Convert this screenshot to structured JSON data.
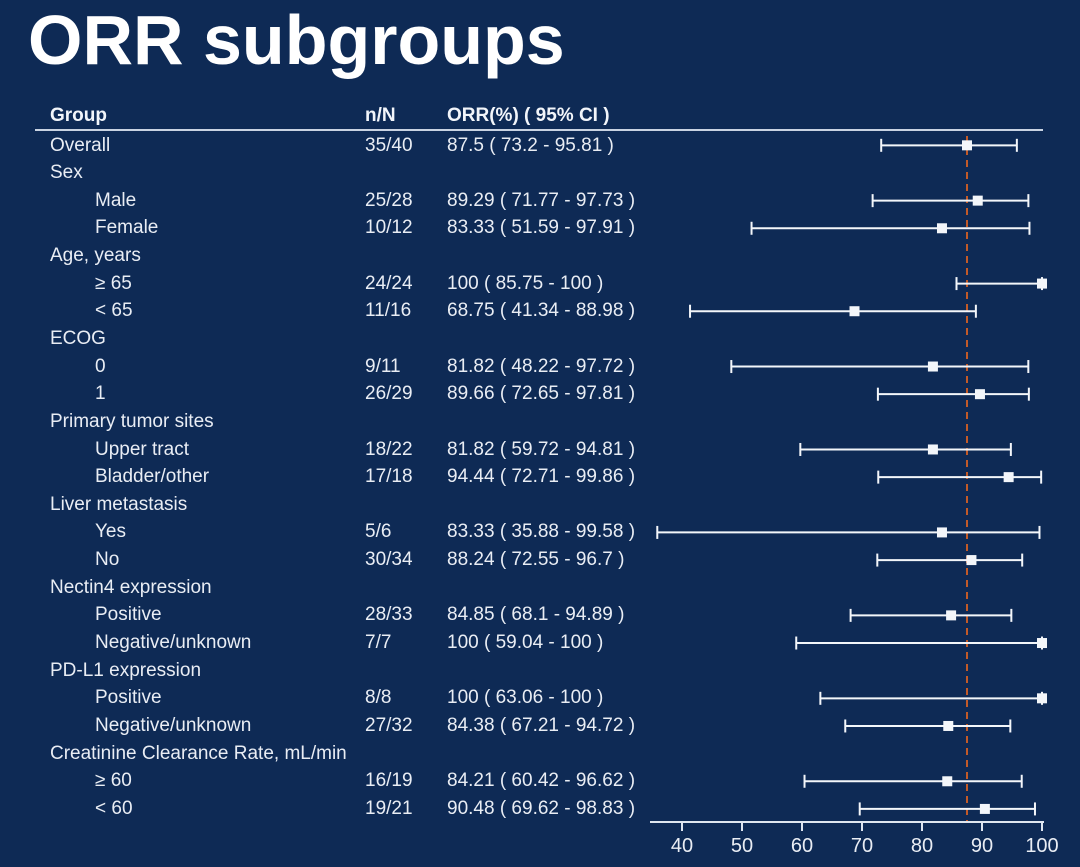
{
  "title": "ORR subgroups",
  "colors": {
    "background": "#0e2a55",
    "text": "#e9edf4",
    "bar": "#f3f6fa",
    "axis": "#dfe6f0",
    "header_rule": "#c9d3e2",
    "reference_line": "#c25a28"
  },
  "chart_data": {
    "type": "forest",
    "title": "ORR subgroups",
    "xlabel": "",
    "x_ticks": [
      40,
      50,
      60,
      70,
      80,
      90,
      100
    ],
    "x_range": [
      40,
      100
    ],
    "reference_line_value": 87.5,
    "legend": "none",
    "columns": {
      "group": "Group",
      "n_over_N": "n/N",
      "orr_ci": "ORR(%) ( 95% CI )"
    },
    "rows": [
      {
        "label": "Overall",
        "indent": 0,
        "nN": "35/40",
        "orr_text": "87.5 ( 73.2 - 95.81 )",
        "orr": 87.5,
        "ci_low": 73.2,
        "ci_high": 95.81
      },
      {
        "label": "Sex",
        "indent": 0
      },
      {
        "label": "Male",
        "indent": 1,
        "nN": "25/28",
        "orr_text": "89.29 ( 71.77 - 97.73 )",
        "orr": 89.29,
        "ci_low": 71.77,
        "ci_high": 97.73
      },
      {
        "label": "Female",
        "indent": 1,
        "nN": "10/12",
        "orr_text": "83.33 ( 51.59 - 97.91 )",
        "orr": 83.33,
        "ci_low": 51.59,
        "ci_high": 97.91
      },
      {
        "label": "Age, years",
        "indent": 0
      },
      {
        "label": "≥ 65",
        "indent": 1,
        "nN": "24/24",
        "orr_text": "100 ( 85.75 - 100 )",
        "orr": 100,
        "ci_low": 85.75,
        "ci_high": 100
      },
      {
        "label": "< 65",
        "indent": 1,
        "nN": "11/16",
        "orr_text": "68.75 ( 41.34 - 88.98 )",
        "orr": 68.75,
        "ci_low": 41.34,
        "ci_high": 88.98
      },
      {
        "label": "ECOG",
        "indent": 0
      },
      {
        "label": "0",
        "indent": 1,
        "nN": "9/11",
        "orr_text": "81.82 ( 48.22 - 97.72 )",
        "orr": 81.82,
        "ci_low": 48.22,
        "ci_high": 97.72
      },
      {
        "label": "1",
        "indent": 1,
        "nN": "26/29",
        "orr_text": "89.66 ( 72.65 - 97.81 )",
        "orr": 89.66,
        "ci_low": 72.65,
        "ci_high": 97.81
      },
      {
        "label": "Primary tumor sites",
        "indent": 0
      },
      {
        "label": "Upper tract",
        "indent": 1,
        "nN": "18/22",
        "orr_text": "81.82 ( 59.72 - 94.81 )",
        "orr": 81.82,
        "ci_low": 59.72,
        "ci_high": 94.81
      },
      {
        "label": "Bladder/other",
        "indent": 1,
        "nN": "17/18",
        "orr_text": "94.44 ( 72.71 - 99.86 )",
        "orr": 94.44,
        "ci_low": 72.71,
        "ci_high": 99.86
      },
      {
        "label": "Liver metastasis",
        "indent": 0
      },
      {
        "label": "Yes",
        "indent": 1,
        "nN": "5/6",
        "orr_text": "83.33 ( 35.88 - 99.58 )",
        "orr": 83.33,
        "ci_low": 35.88,
        "ci_high": 99.58
      },
      {
        "label": "No",
        "indent": 1,
        "nN": "30/34",
        "orr_text": "88.24 ( 72.55 - 96.7 )",
        "orr": 88.24,
        "ci_low": 72.55,
        "ci_high": 96.7
      },
      {
        "label": "Nectin4 expression",
        "indent": 0
      },
      {
        "label": "Positive",
        "indent": 1,
        "nN": "28/33",
        "orr_text": "84.85 ( 68.1 - 94.89 )",
        "orr": 84.85,
        "ci_low": 68.1,
        "ci_high": 94.89
      },
      {
        "label": "Negative/unknown",
        "indent": 1,
        "nN": "7/7",
        "orr_text": "100 ( 59.04 - 100 )",
        "orr": 100,
        "ci_low": 59.04,
        "ci_high": 100
      },
      {
        "label": "PD-L1 expression",
        "indent": 0
      },
      {
        "label": "Positive",
        "indent": 1,
        "nN": "8/8",
        "orr_text": "100 ( 63.06 - 100 )",
        "orr": 100,
        "ci_low": 63.06,
        "ci_high": 100
      },
      {
        "label": "Negative/unknown",
        "indent": 1,
        "nN": "27/32",
        "orr_text": "84.38 ( 67.21 - 94.72 )",
        "orr": 84.38,
        "ci_low": 67.21,
        "ci_high": 94.72
      },
      {
        "label": "Creatinine Clearance Rate, mL/min",
        "indent": 0
      },
      {
        "label": "≥ 60",
        "indent": 1,
        "nN": "16/19",
        "orr_text": "84.21 ( 60.42 - 96.62 )",
        "orr": 84.21,
        "ci_low": 60.42,
        "ci_high": 96.62
      },
      {
        "label": "< 60",
        "indent": 1,
        "nN": "19/21",
        "orr_text": "90.48 ( 69.62 - 98.83 )",
        "orr": 90.48,
        "ci_low": 69.62,
        "ci_high": 98.83
      }
    ]
  }
}
